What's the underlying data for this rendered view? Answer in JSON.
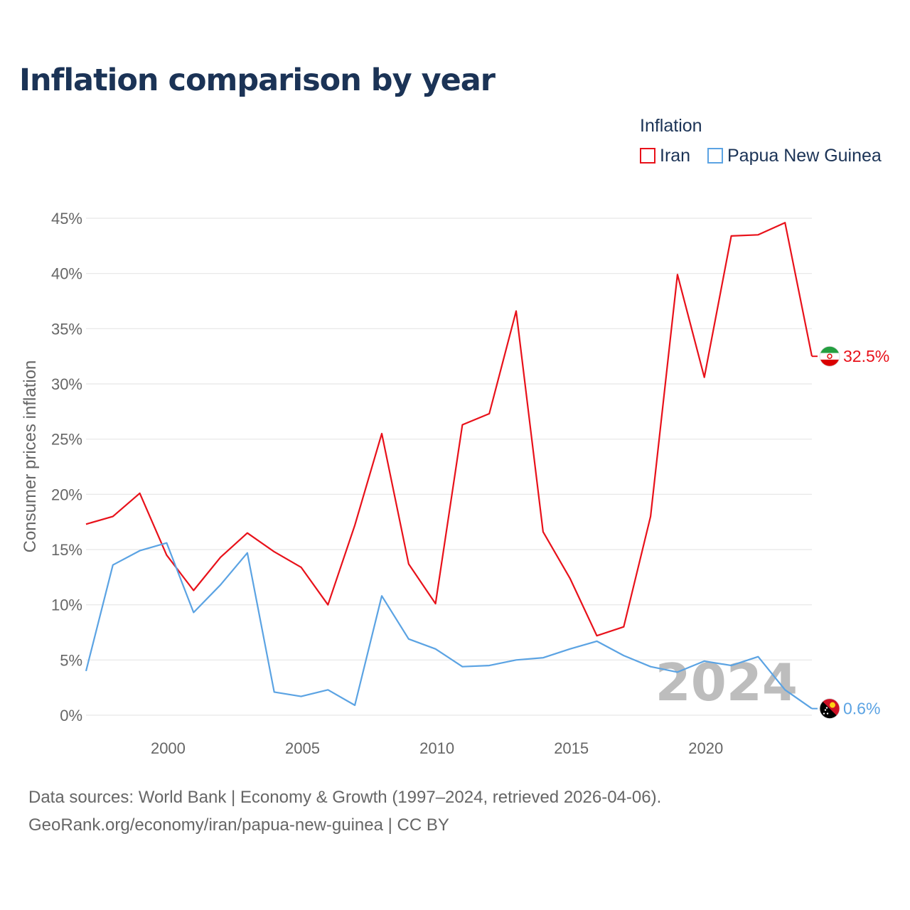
{
  "chart_data": {
    "type": "line",
    "title": "Inflation comparison by year",
    "legend_title": "Inflation",
    "ylabel": "Consumer prices inflation",
    "xlabel": "",
    "xlim": [
      1997,
      2024
    ],
    "ylim": [
      0,
      45
    ],
    "x_ticks": [
      2000,
      2005,
      2010,
      2015,
      2020
    ],
    "y_ticks": [
      0,
      5,
      10,
      15,
      20,
      25,
      30,
      35,
      40,
      45
    ],
    "y_tick_labels": [
      "0%",
      "5%",
      "10%",
      "15%",
      "20%",
      "25%",
      "30%",
      "35%",
      "40%",
      "45%"
    ],
    "x": [
      1997,
      1998,
      1999,
      2000,
      2001,
      2002,
      2003,
      2004,
      2005,
      2006,
      2007,
      2008,
      2009,
      2010,
      2011,
      2012,
      2013,
      2014,
      2015,
      2016,
      2017,
      2018,
      2019,
      2020,
      2021,
      2022,
      2023,
      2024
    ],
    "series": [
      {
        "name": "Iran",
        "color": "#e8111a",
        "end_label": "32.5%",
        "flag": "iran-flag",
        "values": [
          17.3,
          18.0,
          20.1,
          14.5,
          11.3,
          14.3,
          16.5,
          14.8,
          13.4,
          10.0,
          17.2,
          25.5,
          13.7,
          10.1,
          26.3,
          27.3,
          36.6,
          16.6,
          12.4,
          7.2,
          8.0,
          18.0,
          39.9,
          30.6,
          43.4,
          43.5,
          44.6,
          32.5
        ]
      },
      {
        "name": "Papua New Guinea",
        "color": "#5ba3e3",
        "end_label": "0.6%",
        "flag": "papua-new-guinea-flag",
        "values": [
          4.0,
          13.6,
          14.9,
          15.6,
          9.3,
          11.8,
          14.7,
          2.1,
          1.7,
          2.3,
          0.9,
          10.8,
          6.9,
          6.0,
          4.4,
          4.5,
          5.0,
          5.2,
          6.0,
          6.7,
          5.4,
          4.4,
          3.9,
          4.9,
          4.5,
          5.3,
          2.3,
          0.6
        ]
      }
    ],
    "annotations": [
      "2024"
    ],
    "grid": true,
    "legend_position": "top-right"
  },
  "sources": {
    "line1": "Data sources: World Bank | Economy & Growth (1997–2024, retrieved 2026-04-06).",
    "line2": "GeoRank.org/economy/iran/papua-new-guinea | CC BY"
  }
}
